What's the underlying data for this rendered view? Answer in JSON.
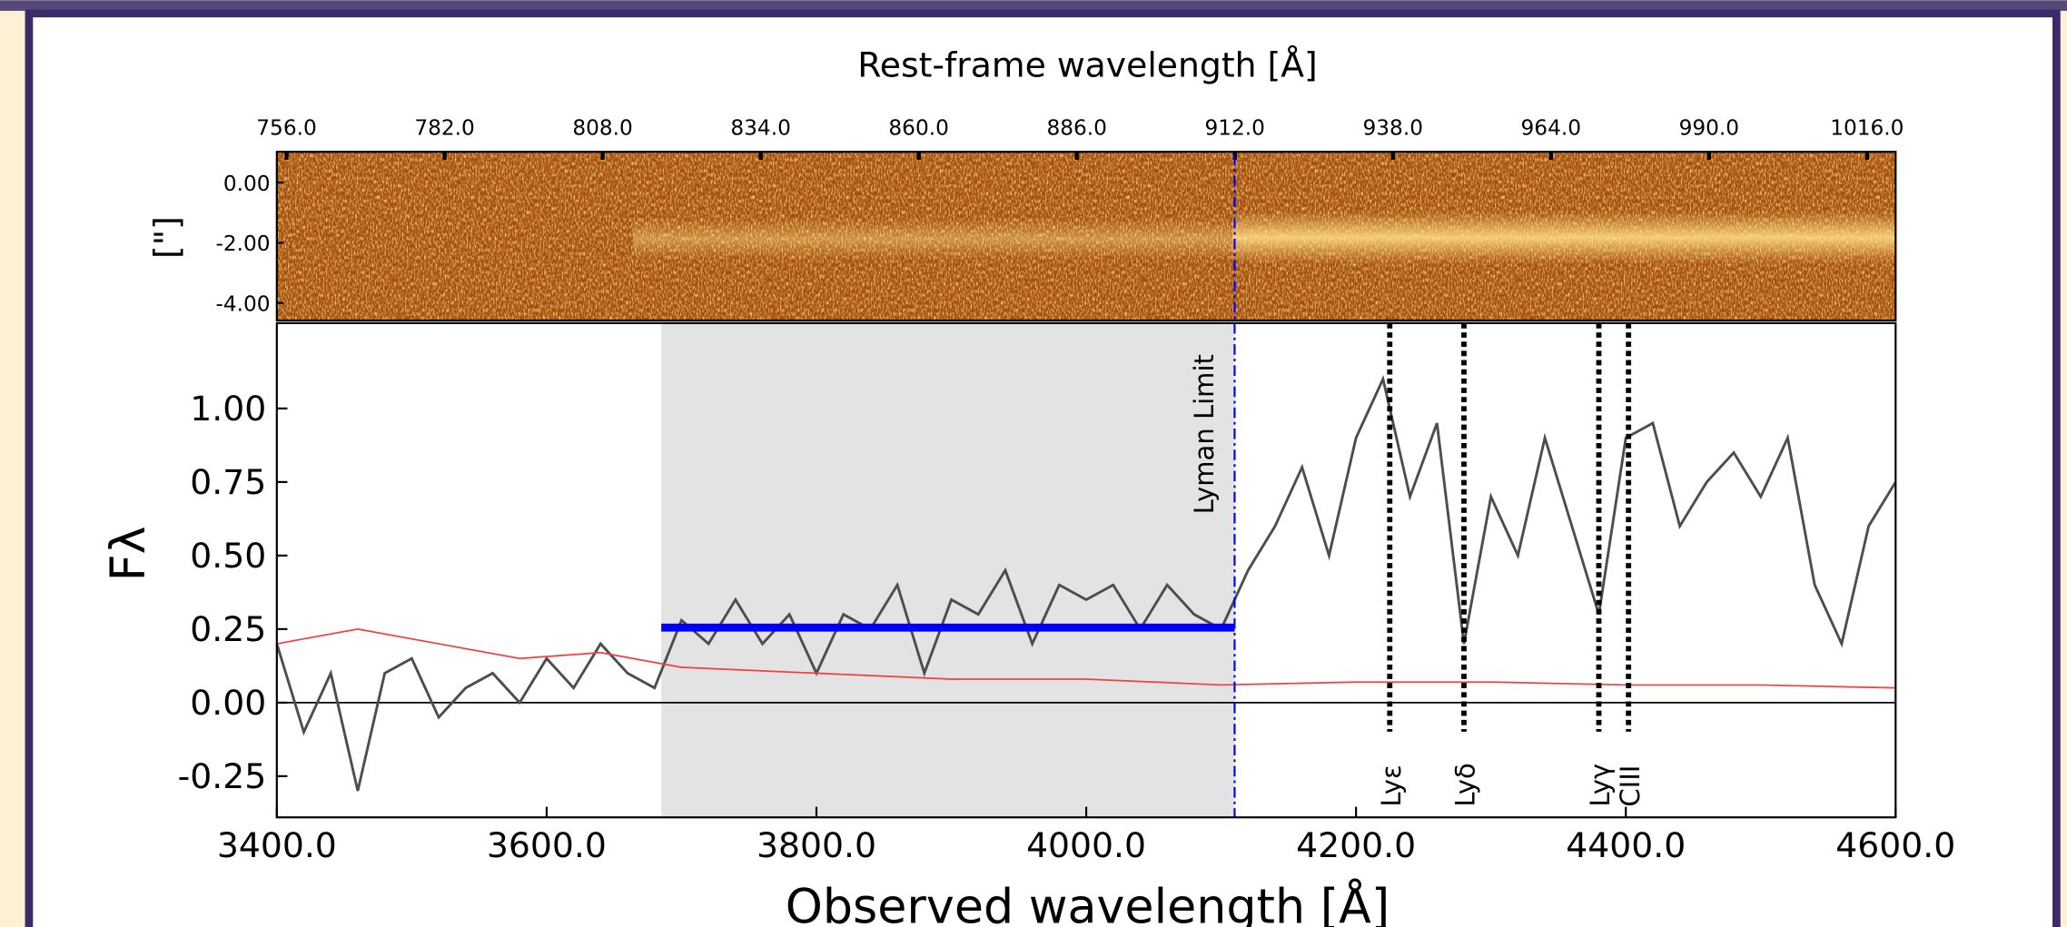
{
  "chart_data": [
    {
      "type": "image",
      "title": "Rest-frame wavelength [Å]",
      "ylabel": "[\"]",
      "xlim": [
        754.4,
        1020.7
      ],
      "xticks": [
        {
          "value": 756,
          "label": "756.0"
        },
        {
          "value": 782,
          "label": "782.0"
        },
        {
          "value": 808,
          "label": "808.0"
        },
        {
          "value": 834,
          "label": "834.0"
        },
        {
          "value": 860,
          "label": "860.0"
        },
        {
          "value": 886,
          "label": "886.0"
        },
        {
          "value": 912,
          "label": "912.0"
        },
        {
          "value": 938,
          "label": "938.0"
        },
        {
          "value": 964,
          "label": "964.0"
        },
        {
          "value": 990,
          "label": "990.0"
        },
        {
          "value": 1016,
          "label": "1016.0"
        }
      ],
      "ylim": [
        -4.58,
        1.02
      ],
      "yticks": [
        {
          "value": 0,
          "label": "0.00"
        },
        {
          "value": -2,
          "label": "-2.00"
        },
        {
          "value": -4,
          "label": "-4.00"
        }
      ]
    },
    {
      "type": "line",
      "xlabel": "Observed wavelength [Å]",
      "ylabel": "Fλ",
      "xlim": [
        3400,
        4600
      ],
      "xticks": [
        {
          "value": 3400,
          "label": "3400.0"
        },
        {
          "value": 3600,
          "label": "3600.0"
        },
        {
          "value": 3800,
          "label": "3800.0"
        },
        {
          "value": 4000,
          "label": "4000.0"
        },
        {
          "value": 4200,
          "label": "4200.0"
        },
        {
          "value": 4400,
          "label": "4400.0"
        },
        {
          "value": 4600,
          "label": "4600.0"
        }
      ],
      "ylim": [
        -0.39,
        1.29
      ],
      "yticks": [
        {
          "value": -0.25,
          "label": "-0.25"
        },
        {
          "value": 0,
          "label": "0.00"
        },
        {
          "value": 0.25,
          "label": "0.25"
        },
        {
          "value": 0.5,
          "label": "0.50"
        },
        {
          "value": 0.75,
          "label": "0.75"
        },
        {
          "value": 1,
          "label": "1.00"
        }
      ],
      "series": [
        {
          "color": "#4d4d4d",
          "x": [
            3400,
            3420,
            3440,
            3460,
            3480,
            3500,
            3520,
            3540,
            3560,
            3580,
            3600,
            3620,
            3640,
            3660,
            3680,
            3700,
            3720,
            3740,
            3760,
            3780,
            3800,
            3820,
            3840,
            3860,
            3880,
            3900,
            3920,
            3940,
            3960,
            3980,
            4000,
            4020,
            4040,
            4060,
            4080,
            4100,
            4120,
            4140,
            4160,
            4180,
            4200,
            4220,
            4240,
            4260,
            4280,
            4300,
            4320,
            4340,
            4360,
            4380,
            4400,
            4420,
            4440,
            4460,
            4480,
            4500,
            4520,
            4540,
            4560,
            4580,
            4600
          ],
          "values": [
            0.2,
            -0.1,
            0.1,
            -0.3,
            0.1,
            0.15,
            -0.05,
            0.05,
            0.1,
            0.0,
            0.15,
            0.05,
            0.2,
            0.1,
            0.05,
            0.28,
            0.2,
            0.35,
            0.2,
            0.3,
            0.1,
            0.3,
            0.25,
            0.4,
            0.1,
            0.35,
            0.3,
            0.45,
            0.2,
            0.4,
            0.35,
            0.4,
            0.25,
            0.4,
            0.3,
            0.25,
            0.45,
            0.6,
            0.8,
            0.5,
            0.9,
            1.1,
            0.7,
            0.95,
            0.2,
            0.7,
            0.5,
            0.9,
            0.6,
            0.3,
            0.9,
            0.95,
            0.6,
            0.75,
            0.85,
            0.7,
            0.9,
            0.4,
            0.2,
            0.6,
            0.75
          ]
        },
        {
          "color": "#f04040",
          "x": [
            3400,
            3460,
            3520,
            3580,
            3640,
            3700,
            3800,
            3900,
            4000,
            4100,
            4200,
            4300,
            4400,
            4500,
            4600
          ],
          "values": [
            0.2,
            0.25,
            0.2,
            0.15,
            0.17,
            0.12,
            0.1,
            0.08,
            0.08,
            0.06,
            0.07,
            0.07,
            0.06,
            0.06,
            0.05
          ]
        }
      ],
      "shaded_region": [
        3685,
        4110
      ],
      "continuum": {
        "x": [
          3685,
          4110
        ],
        "value": 0.255,
        "color": "#0000ff"
      },
      "annotations": [
        {
          "text": "Lyman Limit",
          "x": 4110,
          "color": "#0000ff"
        },
        {
          "text": "Lyε",
          "x": 4225
        },
        {
          "text": "Lyδ",
          "x": 4280
        },
        {
          "text": "Lyγ",
          "x": 4380
        },
        {
          "text": "CIII",
          "x": 4402
        }
      ]
    }
  ]
}
